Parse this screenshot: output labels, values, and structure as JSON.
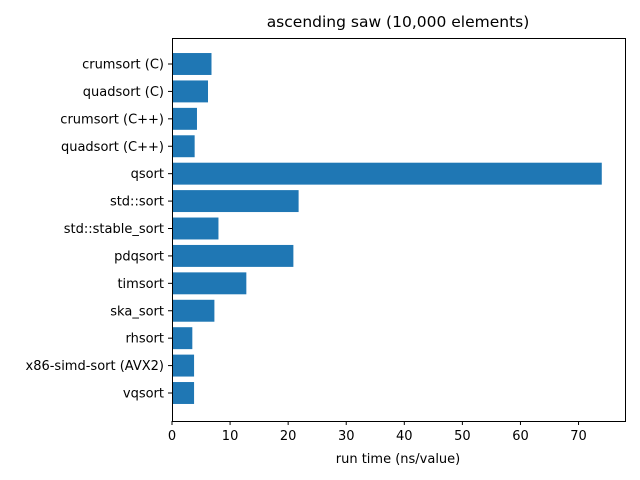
{
  "chart_data": {
    "type": "bar",
    "orientation": "horizontal",
    "title": "ascending saw (10,000 elements)",
    "xlabel": "run time (ns/value)",
    "ylabel": "",
    "categories": [
      "crumsort (C)",
      "quadsort (C)",
      "crumsort (C++)",
      "quadsort (C++)",
      "qsort",
      "std::sort",
      "std::stable_sort",
      "pdqsort",
      "timsort",
      "ska_sort",
      "rhsort",
      "x86-simd-sort (AVX2)",
      "vqsort"
    ],
    "values": [
      6.8,
      6.2,
      4.3,
      3.9,
      74.0,
      21.8,
      8.0,
      20.9,
      12.8,
      7.3,
      3.5,
      3.8,
      3.8
    ],
    "xlim": [
      0,
      78
    ],
    "xticks": [
      0,
      10,
      20,
      30,
      40,
      50,
      60,
      70
    ],
    "grid": false,
    "bar_color": "#1f77b4"
  }
}
